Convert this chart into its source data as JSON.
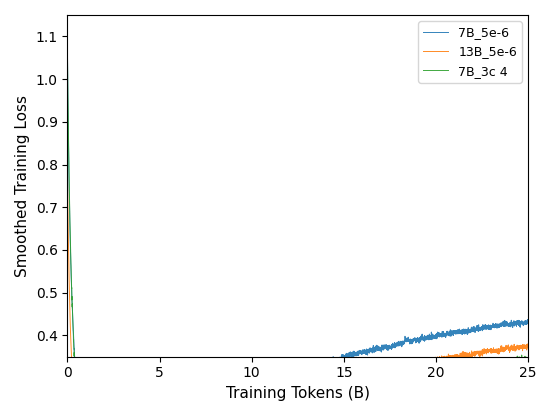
{
  "title": "",
  "xlabel": "Training Tokens (B)",
  "ylabel": "Smoothed Training Loss",
  "xlim": [
    0,
    25
  ],
  "ylim": [
    0.35,
    1.15
  ],
  "legend_labels": [
    "7B_5e-6",
    "13B_5e-6",
    "7B_3c 4"
  ],
  "legend_colors": [
    "#1f77b4",
    "#ff7f0e",
    "#2ca02c"
  ],
  "background_color": "#ffffff",
  "figsize": [
    5.52,
    4.16
  ],
  "dpi": 100
}
